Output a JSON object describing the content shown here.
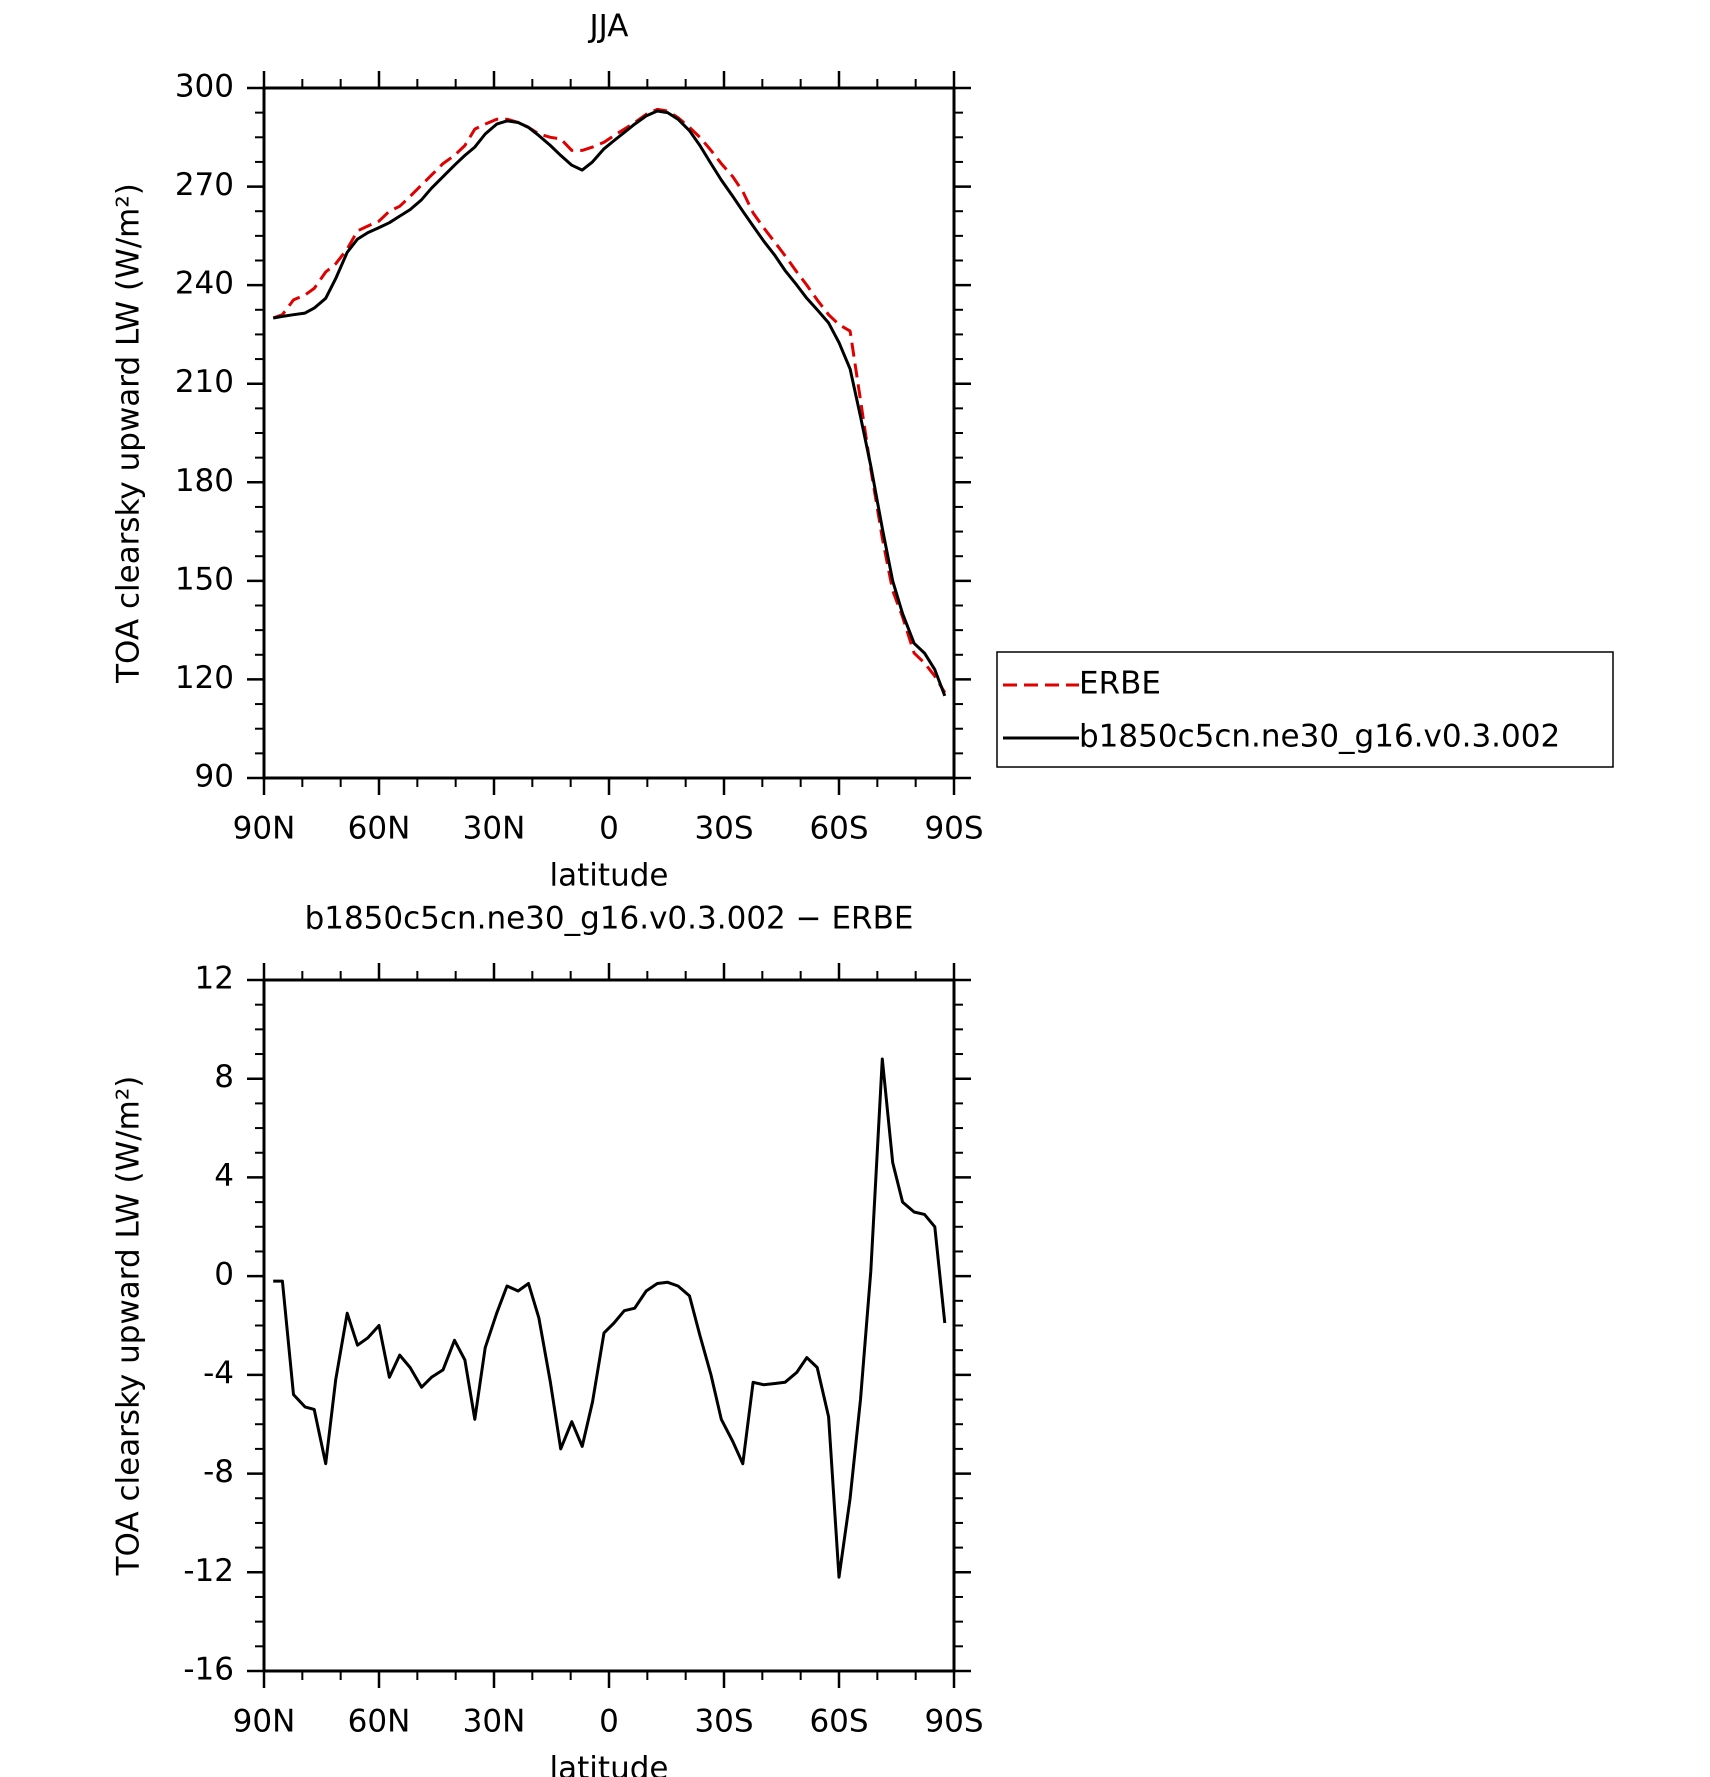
{
  "chart_data": [
    {
      "type": "line",
      "title": "JJA",
      "xlabel": "latitude",
      "ylabel": "TOA clearsky upward LW (W/m²)",
      "x": [
        87.6,
        85.2,
        82.3,
        79.3,
        76.9,
        73.9,
        71.3,
        68.3,
        65.6,
        62.9,
        60.0,
        57.3,
        54.6,
        51.9,
        48.9,
        46.3,
        43.3,
        40.3,
        37.6,
        35.0,
        32.3,
        29.3,
        26.6,
        23.7,
        21.0,
        18.3,
        15.3,
        12.6,
        9.7,
        7.0,
        4.3,
        1.3,
        -1.3,
        -4.0,
        -6.7,
        -9.7,
        -12.6,
        -15.3,
        -18.0,
        -21.0,
        -23.7,
        -26.6,
        -29.3,
        -32.3,
        -34.9,
        -37.6,
        -40.3,
        -43.3,
        -45.9,
        -49.0,
        -51.6,
        -54.3,
        -57.3,
        -60.0,
        -62.9,
        -65.6,
        -68.3,
        -71.3,
        -74.0,
        -76.6,
        -79.6,
        -82.3,
        -85.0,
        -87.6
      ],
      "series": [
        {
          "name": "ERBE",
          "color": "#e00000",
          "dashed": true,
          "values": [
            230,
            231,
            235.5,
            237,
            239,
            244,
            246.5,
            251,
            256.5,
            258,
            259.5,
            262.5,
            264,
            267,
            270.5,
            273.5,
            277,
            279.5,
            282.5,
            287.5,
            289,
            290.5,
            290.5,
            289.5,
            288,
            286,
            285,
            284.5,
            281,
            281,
            282,
            283.5,
            285.5,
            287.5,
            289.5,
            292,
            293.5,
            293,
            291,
            288,
            285,
            281,
            277,
            273,
            268.5,
            262,
            257.5,
            253,
            249,
            244,
            240,
            235.5,
            231,
            228,
            226,
            205,
            184,
            163,
            147,
            139,
            128,
            125,
            121,
            116
          ]
        },
        {
          "name": "b1850c5cn.ne30_g16.v0.3.002",
          "color": "#000000",
          "dashed": false,
          "values": [
            230,
            230.5,
            231,
            231.5,
            233,
            236,
            242,
            250,
            254,
            256,
            257.5,
            259,
            261,
            263,
            266,
            269.5,
            273,
            276.5,
            279.5,
            282,
            286,
            289,
            290,
            289.5,
            288,
            285.5,
            282.5,
            279.5,
            276.5,
            275,
            277.5,
            281.5,
            284,
            286.5,
            289,
            291.5,
            293,
            292.5,
            290.5,
            287,
            282.5,
            277,
            272,
            267,
            262.5,
            258,
            253.5,
            249,
            244.5,
            240,
            236,
            232.5,
            228.5,
            222.5,
            214.5,
            200,
            185,
            166,
            150,
            140,
            131,
            128,
            123,
            115
          ]
        }
      ],
      "xlim": [
        90,
        -90
      ],
      "xticks": [
        {
          "value": 90,
          "label": "90N"
        },
        {
          "value": 60,
          "label": "60N"
        },
        {
          "value": 30,
          "label": "30N"
        },
        0,
        {
          "value": -30,
          "label": "30S"
        },
        {
          "value": -60,
          "label": "60S"
        },
        {
          "value": -90,
          "label": "90S"
        }
      ],
      "ylim": [
        90,
        300
      ],
      "yticks": [
        90,
        120,
        150,
        180,
        210,
        240,
        270,
        300
      ],
      "legend": "outside-right"
    },
    {
      "type": "line",
      "title": "b1850c5cn.ne30_g16.v0.3.002 − ERBE",
      "xlabel": "latitude",
      "ylabel": "TOA clearsky upward LW (W/m²)",
      "x": [
        87.6,
        85.2,
        82.3,
        79.3,
        76.9,
        73.9,
        71.3,
        68.3,
        65.6,
        62.9,
        60.0,
        57.3,
        54.6,
        51.9,
        48.9,
        46.3,
        43.3,
        40.3,
        37.6,
        35.0,
        32.3,
        29.3,
        26.6,
        23.7,
        21.0,
        18.3,
        15.3,
        12.6,
        9.7,
        7.0,
        4.3,
        1.3,
        -1.3,
        -4.0,
        -6.7,
        -9.7,
        -12.6,
        -15.3,
        -18.0,
        -21.0,
        -23.7,
        -26.6,
        -29.3,
        -32.3,
        -34.9,
        -37.6,
        -40.3,
        -43.3,
        -45.9,
        -49.0,
        -51.6,
        -54.3,
        -57.3,
        -60.0,
        -62.9,
        -65.6,
        -68.3,
        -71.3,
        -74.0,
        -76.6,
        -79.6,
        -82.3,
        -85.0,
        -87.6
      ],
      "series": [
        {
          "color": "#000000",
          "dashed": false,
          "values": [
            -0.2,
            -0.2,
            -4.8,
            -5.3,
            -5.4,
            -7.6,
            -4.2,
            -1.5,
            -2.8,
            -2.5,
            -2.0,
            -4.1,
            -3.2,
            -3.7,
            -4.5,
            -4.1,
            -3.8,
            -2.6,
            -3.4,
            -5.8,
            -2.9,
            -1.5,
            -0.4,
            -0.6,
            -0.3,
            -1.7,
            -4.3,
            -7.0,
            -5.9,
            -6.9,
            -5.1,
            -2.3,
            -1.9,
            -1.4,
            -1.3,
            -0.6,
            -0.3,
            -0.25,
            -0.4,
            -0.8,
            -2.4,
            -4.0,
            -5.8,
            -6.7,
            -7.6,
            -4.3,
            -4.4,
            -4.35,
            -4.3,
            -3.9,
            -3.3,
            -3.7,
            -5.7,
            -12.2,
            -9.0,
            -5.0,
            0.2,
            8.8,
            4.6,
            3.0,
            2.6,
            2.5,
            2.0,
            -1.9
          ]
        }
      ],
      "xlim": [
        90,
        -90
      ],
      "xticks": [
        {
          "value": 90,
          "label": "90N"
        },
        {
          "value": 60,
          "label": "60N"
        },
        {
          "value": 30,
          "label": "30N"
        },
        0,
        {
          "value": -30,
          "label": "30S"
        },
        {
          "value": -60,
          "label": "60S"
        },
        {
          "value": -90,
          "label": "90S"
        }
      ],
      "ylim": [
        -16,
        12
      ],
      "yticks": [
        -16,
        -12,
        -8,
        -4,
        0,
        4,
        8,
        12
      ]
    }
  ]
}
